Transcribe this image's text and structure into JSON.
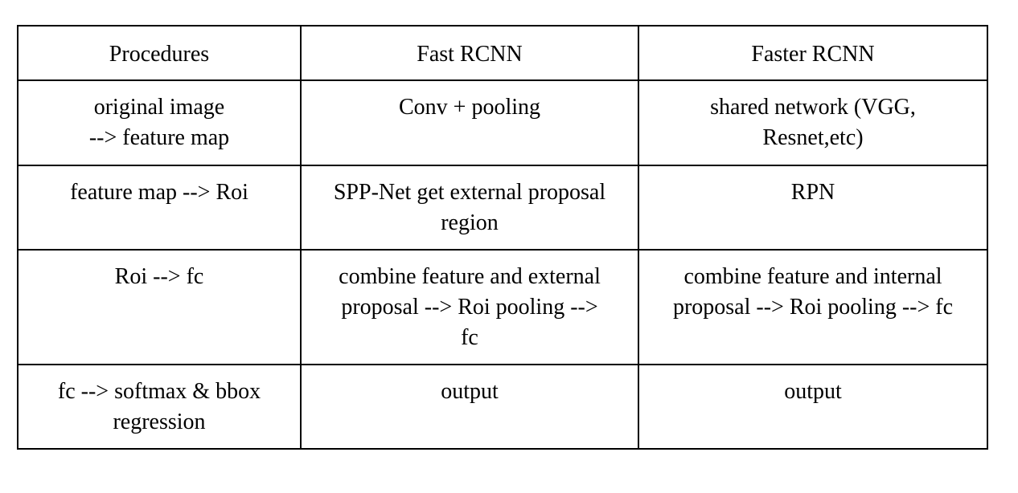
{
  "table": {
    "headers": [
      "Procedures",
      "Fast RCNN",
      "Faster RCNN"
    ],
    "rows": [
      [
        "original image\n--> feature map",
        "Conv + pooling",
        "shared network (VGG,\nResnet,etc)"
      ],
      [
        "feature map --> Roi",
        "SPP-Net get external proposal\nregion",
        "RPN"
      ],
      [
        "Roi --> fc",
        "combine feature and external\nproposal --> Roi pooling -->\nfc",
        "combine feature and internal\nproposal --> Roi pooling --> fc"
      ],
      [
        "fc --> softmax & bbox\nregression",
        "output",
        "output"
      ]
    ]
  }
}
